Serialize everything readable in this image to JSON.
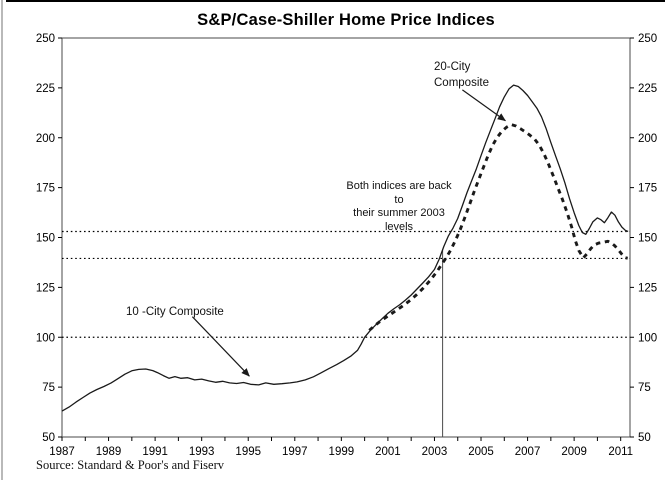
{
  "chart_data": {
    "type": "line",
    "title": "S&P/Case-Shiller Home Price Indices",
    "source": "Source: Standard & Poor's and Fiserv",
    "xlim": [
      1987,
      2011.4
    ],
    "ylim": [
      50,
      250
    ],
    "x_tick_labels": [
      1987,
      1989,
      1991,
      1993,
      1995,
      1997,
      1999,
      2001,
      2003,
      2005,
      2007,
      2009,
      2011
    ],
    "x_minor_tick_step": 1,
    "y_ticks": [
      50,
      75,
      100,
      125,
      150,
      175,
      200,
      225,
      250
    ],
    "y_axis_sides": [
      "left",
      "right"
    ],
    "grid": "none",
    "line_color": "#1a1a1a",
    "reference_lines_y": [
      153,
      139.5,
      100
    ],
    "reference_line_x": {
      "x": 2003.35,
      "y_top": 144,
      "y_bottom": 50
    },
    "series": [
      {
        "name": "10-City Composite",
        "style": "solid",
        "points": [
          [
            1987.0,
            63
          ],
          [
            1987.3,
            65
          ],
          [
            1987.6,
            67.5
          ],
          [
            1987.9,
            69.8
          ],
          [
            1988.2,
            72
          ],
          [
            1988.5,
            73.8
          ],
          [
            1988.8,
            75.3
          ],
          [
            1989.1,
            77
          ],
          [
            1989.4,
            79.2
          ],
          [
            1989.7,
            81.5
          ],
          [
            1990.0,
            83.2
          ],
          [
            1990.3,
            83.9
          ],
          [
            1990.6,
            84.1
          ],
          [
            1990.9,
            83.3
          ],
          [
            1991.1,
            82.3
          ],
          [
            1991.35,
            80.8
          ],
          [
            1991.6,
            79.4
          ],
          [
            1991.85,
            80.3
          ],
          [
            1992.1,
            79.4
          ],
          [
            1992.4,
            79.7
          ],
          [
            1992.7,
            78.6
          ],
          [
            1993.0,
            79.0
          ],
          [
            1993.3,
            78.1
          ],
          [
            1993.6,
            77.4
          ],
          [
            1993.9,
            77.9
          ],
          [
            1994.2,
            77.1
          ],
          [
            1994.5,
            76.8
          ],
          [
            1994.8,
            77.3
          ],
          [
            1995.1,
            76.4
          ],
          [
            1995.45,
            76.1
          ],
          [
            1995.75,
            77.1
          ],
          [
            1996.1,
            76.4
          ],
          [
            1996.45,
            76.7
          ],
          [
            1996.8,
            77.1
          ],
          [
            1997.1,
            77.6
          ],
          [
            1997.45,
            78.6
          ],
          [
            1997.8,
            80.2
          ],
          [
            1998.1,
            82.0
          ],
          [
            1998.45,
            84.2
          ],
          [
            1998.8,
            86.3
          ],
          [
            1999.1,
            88.3
          ],
          [
            1999.4,
            90.5
          ],
          [
            1999.7,
            93.5
          ],
          [
            1999.85,
            96.5
          ],
          [
            2000.0,
            100
          ],
          [
            2000.25,
            103.5
          ],
          [
            2000.5,
            106.5
          ],
          [
            2000.75,
            109.3
          ],
          [
            2001.0,
            112
          ],
          [
            2001.25,
            114.2
          ],
          [
            2001.5,
            116.2
          ],
          [
            2001.75,
            118.6
          ],
          [
            2002.0,
            121.2
          ],
          [
            2002.25,
            124.2
          ],
          [
            2002.5,
            127.2
          ],
          [
            2002.75,
            130.3
          ],
          [
            2003.0,
            134
          ],
          [
            2003.2,
            139
          ],
          [
            2003.4,
            145.5
          ],
          [
            2003.6,
            150.8
          ],
          [
            2003.8,
            154.8
          ],
          [
            2004.0,
            159.5
          ],
          [
            2004.2,
            166
          ],
          [
            2004.4,
            172.5
          ],
          [
            2004.6,
            178.5
          ],
          [
            2004.8,
            184.5
          ],
          [
            2005.0,
            191
          ],
          [
            2005.2,
            197.5
          ],
          [
            2005.4,
            203.5
          ],
          [
            2005.6,
            209.5
          ],
          [
            2005.8,
            215.5
          ],
          [
            2006.0,
            220.5
          ],
          [
            2006.2,
            224.5
          ],
          [
            2006.4,
            226.4
          ],
          [
            2006.6,
            225.7
          ],
          [
            2006.8,
            223.7
          ],
          [
            2007.0,
            221.2
          ],
          [
            2007.2,
            218
          ],
          [
            2007.4,
            214.8
          ],
          [
            2007.6,
            210.5
          ],
          [
            2007.8,
            204.5
          ],
          [
            2008.0,
            197.5
          ],
          [
            2008.2,
            191
          ],
          [
            2008.4,
            184.5
          ],
          [
            2008.6,
            177.5
          ],
          [
            2008.8,
            169.5
          ],
          [
            2009.0,
            162.5
          ],
          [
            2009.2,
            156
          ],
          [
            2009.35,
            152.5
          ],
          [
            2009.5,
            151.6
          ],
          [
            2009.65,
            154.5
          ],
          [
            2009.8,
            157.8
          ],
          [
            2010.0,
            159.8
          ],
          [
            2010.15,
            158.9
          ],
          [
            2010.3,
            157.4
          ],
          [
            2010.45,
            159.9
          ],
          [
            2010.6,
            162.8
          ],
          [
            2010.75,
            161.2
          ],
          [
            2010.9,
            157.8
          ],
          [
            2011.05,
            155.2
          ],
          [
            2011.2,
            153.6
          ],
          [
            2011.32,
            153.0
          ]
        ]
      },
      {
        "name": "20-City Composite",
        "style": "dashed",
        "points": [
          [
            2000.2,
            103.5
          ],
          [
            2000.45,
            106
          ],
          [
            2000.7,
            108.3
          ],
          [
            2001.0,
            110.6
          ],
          [
            2001.3,
            113
          ],
          [
            2001.6,
            115.4
          ],
          [
            2001.9,
            118
          ],
          [
            2002.2,
            121
          ],
          [
            2002.5,
            124.4
          ],
          [
            2002.8,
            128.3
          ],
          [
            2003.1,
            132.8
          ],
          [
            2003.3,
            136.3
          ],
          [
            2003.5,
            139.8
          ],
          [
            2003.7,
            143.8
          ],
          [
            2003.9,
            148.5
          ],
          [
            2004.1,
            153.8
          ],
          [
            2004.3,
            159.8
          ],
          [
            2004.5,
            166.3
          ],
          [
            2004.7,
            172.8
          ],
          [
            2004.9,
            179
          ],
          [
            2005.1,
            185
          ],
          [
            2005.3,
            191
          ],
          [
            2005.5,
            196.3
          ],
          [
            2005.7,
            200.3
          ],
          [
            2005.9,
            203.3
          ],
          [
            2006.1,
            205.3
          ],
          [
            2006.3,
            206.6
          ],
          [
            2006.5,
            205.9
          ],
          [
            2006.7,
            204.5
          ],
          [
            2006.9,
            203
          ],
          [
            2007.1,
            201.3
          ],
          [
            2007.3,
            199.3
          ],
          [
            2007.5,
            196.3
          ],
          [
            2007.7,
            192
          ],
          [
            2007.9,
            186.8
          ],
          [
            2008.1,
            181
          ],
          [
            2008.3,
            175
          ],
          [
            2008.5,
            169
          ],
          [
            2008.7,
            162.5
          ],
          [
            2008.9,
            155
          ],
          [
            2009.05,
            148.5
          ],
          [
            2009.2,
            143.5
          ],
          [
            2009.4,
            139.8
          ],
          [
            2009.55,
            141.8
          ],
          [
            2009.7,
            144.2
          ],
          [
            2009.85,
            146.2
          ],
          [
            2010.05,
            147.2
          ],
          [
            2010.25,
            147.6
          ],
          [
            2010.45,
            148.1
          ],
          [
            2010.6,
            147.2
          ],
          [
            2010.75,
            145.8
          ],
          [
            2010.9,
            143.8
          ],
          [
            2011.05,
            141.6
          ],
          [
            2011.2,
            139.8
          ],
          [
            2011.3,
            139.6
          ]
        ]
      }
    ],
    "annotations": {
      "label20": {
        "lines": [
          "20-City",
          "Composite"
        ],
        "arrow": {
          "from": [
            2004.2,
            224
          ],
          "to": [
            2006.05,
            208.5
          ]
        }
      },
      "both_note": {
        "lines": [
          "Both indices are back to",
          "their summer 2003 levels"
        ]
      },
      "label10": {
        "text": "10 -City Composite",
        "arrow": {
          "from": [
            1992.6,
            110.3
          ],
          "to": [
            1995.05,
            80.5
          ]
        }
      }
    }
  }
}
